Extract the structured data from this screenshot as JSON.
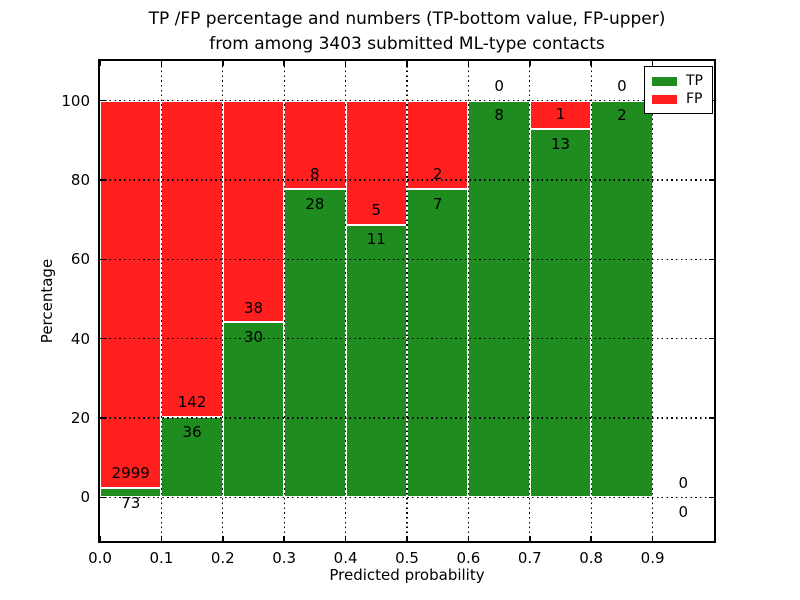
{
  "chart_data": {
    "type": "bar",
    "stacked": true,
    "normalized_to_percent_per_bin": true,
    "title_line1": "TP /FP percentage and numbers (TP-bottom value, FP-upper)",
    "title_line2": "from among 3403 submitted ML-type contacts",
    "total_contacts": 3403,
    "xlabel": "Predicted probability",
    "ylabel": "Percentage",
    "xlim": [
      0.0,
      1.0
    ],
    "ylim": [
      -11,
      110
    ],
    "x_ticks": [
      "0.0",
      "0.1",
      "0.2",
      "0.3",
      "0.4",
      "0.5",
      "0.6",
      "0.7",
      "0.8",
      "0.9"
    ],
    "y_ticks": [
      "0",
      "20",
      "40",
      "60",
      "80",
      "100"
    ],
    "grid": "dotted black, drawn above bars",
    "legend_position": "upper right",
    "bin_edges": [
      0.0,
      0.1,
      0.2,
      0.3,
      0.4,
      0.5,
      0.6,
      0.7,
      0.8,
      0.9,
      1.0
    ],
    "categories": [
      "0.0-0.1",
      "0.1-0.2",
      "0.2-0.3",
      "0.3-0.4",
      "0.4-0.5",
      "0.5-0.6",
      "0.6-0.7",
      "0.7-0.8",
      "0.8-0.9",
      "0.9-1.0"
    ],
    "series": [
      {
        "name": "TP",
        "color": "#1e8c1e",
        "counts": [
          73,
          36,
          30,
          28,
          11,
          7,
          8,
          13,
          2,
          0
        ]
      },
      {
        "name": "FP",
        "color": "#ff1f1f",
        "counts": [
          2999,
          142,
          38,
          8,
          5,
          2,
          0,
          1,
          0,
          0
        ]
      }
    ],
    "bar_edge_color": "#ffffff",
    "bar_label_offset_pct": 3.7
  }
}
